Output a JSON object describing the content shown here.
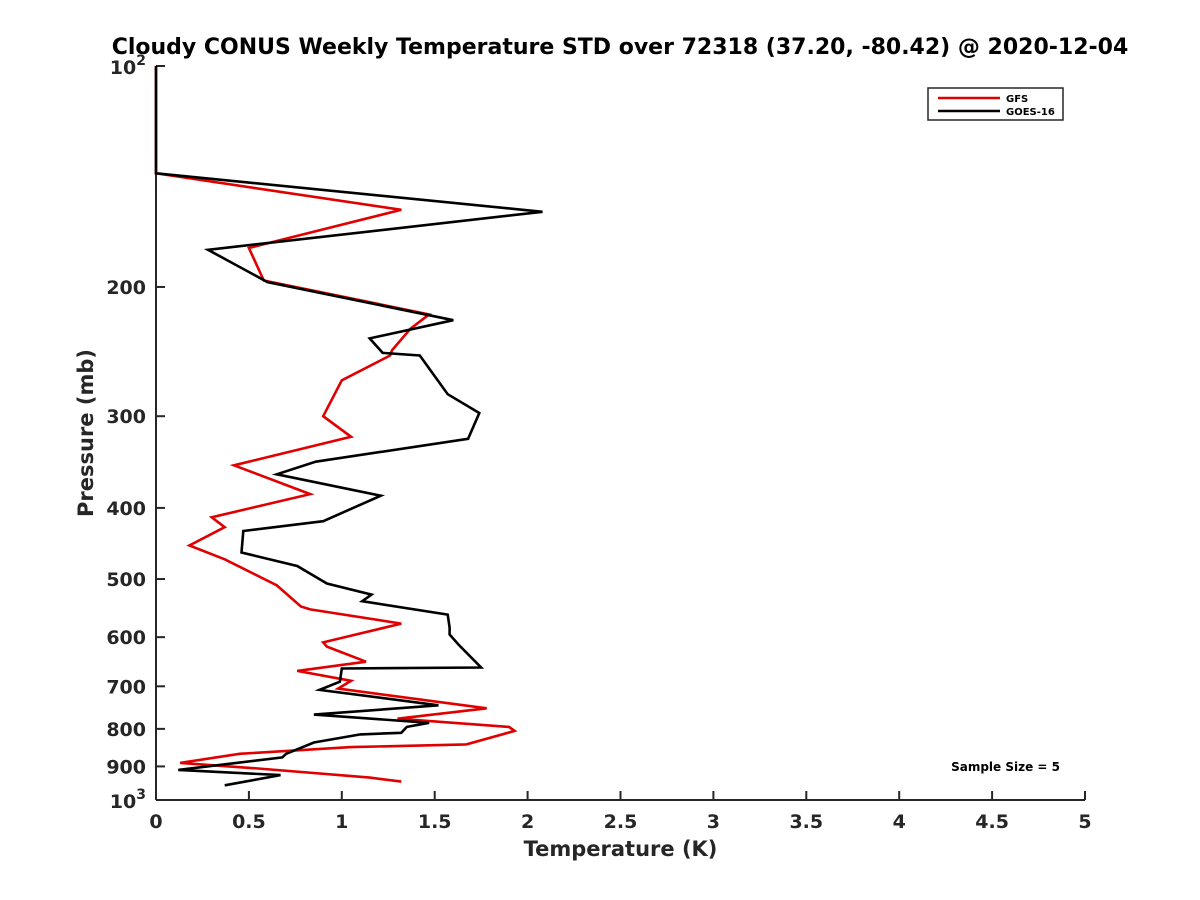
{
  "chart_data": {
    "type": "line",
    "title": "Cloudy CONUS Weekly Temperature STD over 72318 (37.20, -80.42) @ 2020-12-04",
    "xlabel": "Temperature (K)",
    "ylabel": "Pressure (mb)",
    "xlim": [
      0,
      5
    ],
    "ylim": [
      100,
      1000
    ],
    "y_scale": "log",
    "y_reversed": true,
    "grid": false,
    "legend_position": "top-right",
    "annotation": "Sample Size = 5",
    "x_ticks": [
      {
        "value": 0,
        "label": "0"
      },
      {
        "value": 0.5,
        "label": "0.5"
      },
      {
        "value": 1,
        "label": "1"
      },
      {
        "value": 1.5,
        "label": "1.5"
      },
      {
        "value": 2,
        "label": "2"
      },
      {
        "value": 2.5,
        "label": "2.5"
      },
      {
        "value": 3,
        "label": "3"
      },
      {
        "value": 3.5,
        "label": "3.5"
      },
      {
        "value": 4,
        "label": "4"
      },
      {
        "value": 4.5,
        "label": "4.5"
      },
      {
        "value": 5,
        "label": "5"
      }
    ],
    "y_ticks": [
      {
        "value": 100,
        "base": "10",
        "exp": "2"
      },
      {
        "value": 200,
        "label": "200"
      },
      {
        "value": 300,
        "label": "300"
      },
      {
        "value": 400,
        "label": "400"
      },
      {
        "value": 500,
        "label": "500"
      },
      {
        "value": 600,
        "label": "600"
      },
      {
        "value": 700,
        "label": "700"
      },
      {
        "value": 800,
        "label": "800"
      },
      {
        "value": 900,
        "label": "900"
      },
      {
        "value": 1000,
        "base": "10",
        "exp": "3"
      }
    ],
    "series": [
      {
        "name": "GFS",
        "color": "#e00000",
        "x": [
          0,
          0,
          0,
          1.32,
          0.5,
          0.58,
          1.47,
          1.37,
          1.27,
          1.26,
          1.0,
          0.9,
          1.05,
          0.42,
          0.83,
          0.3,
          0.37,
          0.18,
          0.37,
          0.65,
          0.78,
          0.83,
          1.32,
          0.9,
          0.92,
          1.13,
          0.76,
          1.05,
          0.98,
          1.78,
          1.3,
          1.9,
          1.93,
          1.67,
          1.05,
          0.45,
          0.13,
          0.55,
          1.15,
          1.32
        ],
        "y": [
          100,
          120,
          140,
          157,
          177,
          196,
          218,
          228,
          244,
          248,
          268,
          300,
          320,
          350,
          383,
          412,
          425,
          450,
          470,
          510,
          545,
          550,
          575,
          610,
          618,
          648,
          667,
          688,
          705,
          750,
          775,
          795,
          805,
          840,
          847,
          865,
          890,
          906,
          932,
          944
        ]
      },
      {
        "name": "GOES-16",
        "color": "#000000",
        "x": [
          0,
          0,
          0,
          2.08,
          0.28,
          0.6,
          1.6,
          1.15,
          1.22,
          1.42,
          1.57,
          1.74,
          1.68,
          0.86,
          0.65,
          1.21,
          0.9,
          0.47,
          0.46,
          0.76,
          0.92,
          1.16,
          1.11,
          1.57,
          1.58,
          1.58,
          1.63,
          1.75,
          1.0,
          0.99,
          0.88,
          1.52,
          0.85,
          1.47,
          1.35,
          1.32,
          1.1,
          0.85,
          0.7,
          0.68,
          0.12,
          0.67,
          0.37
        ],
        "y": [
          100,
          120,
          140,
          158,
          178,
          197,
          222,
          235,
          246,
          248,
          280,
          297,
          322,
          346,
          360,
          385,
          417,
          430,
          460,
          480,
          507,
          525,
          536,
          559,
          582,
          595,
          615,
          660,
          662,
          690,
          708,
          743,
          765,
          785,
          795,
          810,
          814,
          835,
          865,
          875,
          910,
          925,
          955
        ]
      }
    ]
  }
}
